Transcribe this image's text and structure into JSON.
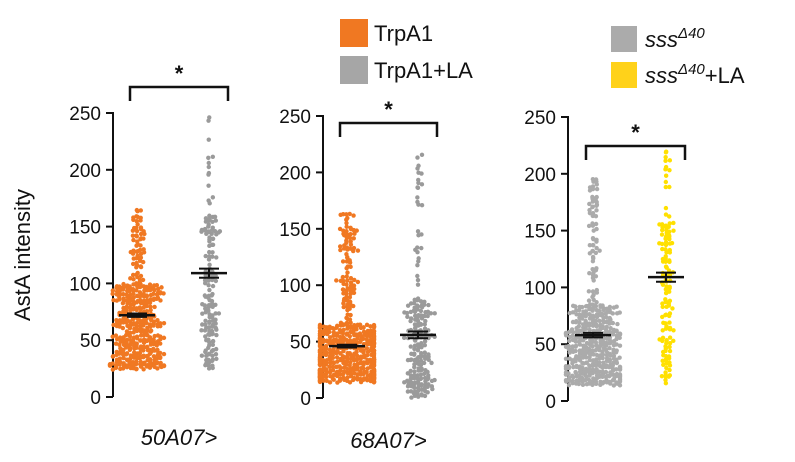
{
  "chart_data": [
    {
      "type": "scatter",
      "title": "",
      "xlabel": "50A07>",
      "ylabel": "AstA intensity",
      "ylim": [
        0,
        250
      ],
      "yticks": [
        0,
        50,
        100,
        150,
        200,
        250
      ],
      "grid": false,
      "significance": "*",
      "series": [
        {
          "name": "TrpA1",
          "color": "#F07822",
          "n": 420,
          "min": 24,
          "max": 165,
          "mean": 72,
          "sem": 1.5
        },
        {
          "name": "TrpA1+LA",
          "color": "#9A9A9A",
          "n": 150,
          "min": 25,
          "max": 246,
          "mean": 109,
          "sem": 4
        }
      ]
    },
    {
      "type": "scatter",
      "title": "",
      "xlabel": "68A07>",
      "ylabel": "",
      "ylim": [
        0,
        250
      ],
      "yticks": [
        0,
        50,
        100,
        150,
        200,
        250
      ],
      "grid": false,
      "significance": "*",
      "series": [
        {
          "name": "TrpA1",
          "color": "#F07822",
          "n": 520,
          "min": 14,
          "max": 163,
          "mean": 46,
          "sem": 1.2
        },
        {
          "name": "TrpA1+LA",
          "color": "#9A9A9A",
          "n": 200,
          "min": 1,
          "max": 215,
          "mean": 56,
          "sem": 3
        }
      ]
    },
    {
      "type": "scatter",
      "title": "",
      "xlabel": "",
      "ylabel": "",
      "ylim": [
        0,
        250
      ],
      "yticks": [
        0,
        50,
        100,
        150,
        200,
        250
      ],
      "grid": false,
      "significance": "*",
      "series": [
        {
          "name": "sssΔ40",
          "color": "#ABABAB",
          "n": 450,
          "min": 14,
          "max": 195,
          "mean": 58,
          "sem": 2
        },
        {
          "name": "sssΔ40+LA",
          "color": "#FFE000",
          "n": 130,
          "min": 16,
          "max": 220,
          "mean": 109,
          "sem": 4
        }
      ]
    }
  ],
  "legends": {
    "trpa1": [
      {
        "label": "TrpA1",
        "color": "#F07822"
      },
      {
        "label": "TrpA1+LA",
        "color": "#A6A6A6"
      }
    ],
    "sss": [
      {
        "label_base": "sss",
        "label_sup": "Δ40",
        "label_suffix": "",
        "color": "#ABABAB"
      },
      {
        "label_base": "sss",
        "label_sup": "Δ40",
        "label_suffix": "+LA",
        "color": "#FFD21A"
      }
    ]
  }
}
